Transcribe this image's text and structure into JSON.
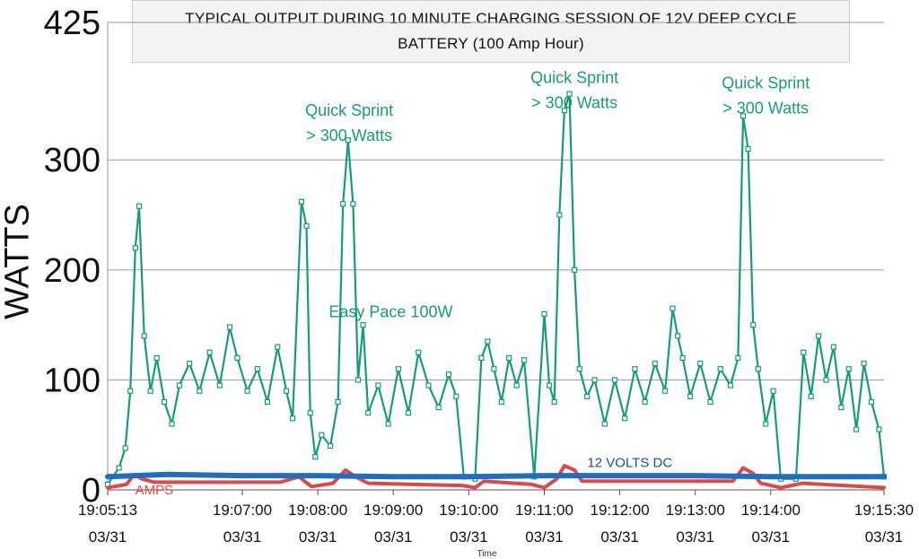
{
  "chart_data": {
    "type": "line",
    "title": "TYPICAL OUTPUT DURING 10 MINUTE CHARGING SESSION  OF 12V DEEP CYCLE\nBATTERY  (100 Amp Hour)",
    "ylabel": "WATTS",
    "xlabel": "Time",
    "ylim": [
      0,
      425
    ],
    "yticks": [
      0,
      100,
      200,
      300,
      425
    ],
    "xlim": [
      "19:05:13",
      "19:15:30"
    ],
    "xticks": [
      {
        "time": "19:05:13",
        "date": "03/31"
      },
      {
        "time": "19:07:00",
        "date": "03/31"
      },
      {
        "time": "19:08:00",
        "date": "03/31"
      },
      {
        "time": "19:09:00",
        "date": "03/31"
      },
      {
        "time": "19:10:00",
        "date": "03/31"
      },
      {
        "time": "19:11:00",
        "date": "03/31"
      },
      {
        "time": "19:12:00",
        "date": "03/31"
      },
      {
        "time": "19:13:00",
        "date": "03/31"
      },
      {
        "time": "19:14:00",
        "date": "03/31"
      },
      {
        "time": "19:15:30",
        "date": "03/31"
      }
    ],
    "grid": true,
    "series": [
      {
        "name": "",
        "color": "#1a9a7a",
        "points": [
          [
            "19:05:13",
            5
          ],
          [
            "19:05:22",
            20
          ],
          [
            "19:05:27",
            38
          ],
          [
            "19:05:31",
            90
          ],
          [
            "19:05:35",
            220
          ],
          [
            "19:05:38",
            258
          ],
          [
            "19:05:42",
            140
          ],
          [
            "19:05:47",
            90
          ],
          [
            "19:05:52",
            120
          ],
          [
            "19:05:58",
            80
          ],
          [
            "19:06:04",
            60
          ],
          [
            "19:06:10",
            95
          ],
          [
            "19:06:18",
            115
          ],
          [
            "19:06:26",
            90
          ],
          [
            "19:06:34",
            125
          ],
          [
            "19:06:42",
            95
          ],
          [
            "19:06:50",
            148
          ],
          [
            "19:06:56",
            120
          ],
          [
            "19:07:04",
            90
          ],
          [
            "19:07:12",
            110
          ],
          [
            "19:07:20",
            80
          ],
          [
            "19:07:28",
            130
          ],
          [
            "19:07:35",
            90
          ],
          [
            "19:07:40",
            65
          ],
          [
            "19:07:47",
            262
          ],
          [
            "19:07:51",
            240
          ],
          [
            "19:07:54",
            70
          ],
          [
            "19:07:58",
            30
          ],
          [
            "19:08:03",
            50
          ],
          [
            "19:08:10",
            40
          ],
          [
            "19:08:16",
            80
          ],
          [
            "19:08:20",
            260
          ],
          [
            "19:08:24",
            318
          ],
          [
            "19:08:28",
            260
          ],
          [
            "19:08:32",
            100
          ],
          [
            "19:08:36",
            150
          ],
          [
            "19:08:40",
            70
          ],
          [
            "19:08:48",
            95
          ],
          [
            "19:08:56",
            60
          ],
          [
            "19:09:04",
            110
          ],
          [
            "19:09:12",
            70
          ],
          [
            "19:09:20",
            125
          ],
          [
            "19:09:28",
            95
          ],
          [
            "19:09:36",
            75
          ],
          [
            "19:09:44",
            105
          ],
          [
            "19:09:50",
            85
          ],
          [
            "19:09:56",
            12
          ],
          [
            "19:10:05",
            10
          ],
          [
            "19:10:10",
            120
          ],
          [
            "19:10:15",
            135
          ],
          [
            "19:10:20",
            110
          ],
          [
            "19:10:26",
            80
          ],
          [
            "19:10:32",
            120
          ],
          [
            "19:10:38",
            95
          ],
          [
            "19:10:44",
            118
          ],
          [
            "19:10:52",
            12
          ],
          [
            "19:11:00",
            160
          ],
          [
            "19:11:04",
            95
          ],
          [
            "19:11:08",
            80
          ],
          [
            "19:11:12",
            250
          ],
          [
            "19:11:16",
            345
          ],
          [
            "19:11:20",
            360
          ],
          [
            "19:11:24",
            200
          ],
          [
            "19:11:28",
            110
          ],
          [
            "19:11:34",
            85
          ],
          [
            "19:11:40",
            100
          ],
          [
            "19:11:48",
            60
          ],
          [
            "19:11:56",
            100
          ],
          [
            "19:12:04",
            65
          ],
          [
            "19:12:12",
            110
          ],
          [
            "19:12:20",
            80
          ],
          [
            "19:12:28",
            115
          ],
          [
            "19:12:36",
            90
          ],
          [
            "19:12:42",
            165
          ],
          [
            "19:12:46",
            140
          ],
          [
            "19:12:50",
            120
          ],
          [
            "19:12:56",
            85
          ],
          [
            "19:13:04",
            115
          ],
          [
            "19:13:12",
            80
          ],
          [
            "19:13:20",
            110
          ],
          [
            "19:13:28",
            95
          ],
          [
            "19:13:34",
            120
          ],
          [
            "19:13:38",
            340
          ],
          [
            "19:13:42",
            310
          ],
          [
            "19:13:46",
            150
          ],
          [
            "19:13:50",
            110
          ],
          [
            "19:13:56",
            60
          ],
          [
            "19:14:02",
            90
          ],
          [
            "19:14:08",
            10
          ],
          [
            "19:14:20",
            10
          ],
          [
            "19:14:26",
            125
          ],
          [
            "19:14:32",
            85
          ],
          [
            "19:14:38",
            140
          ],
          [
            "19:14:44",
            100
          ],
          [
            "19:14:50",
            130
          ],
          [
            "19:14:56",
            75
          ],
          [
            "19:15:02",
            110
          ],
          [
            "19:15:08",
            55
          ],
          [
            "19:15:14",
            115
          ],
          [
            "19:15:20",
            80
          ],
          [
            "19:15:26",
            55
          ],
          [
            "19:15:30",
            12
          ]
        ]
      },
      {
        "name": "AMPS",
        "color": "#e04848",
        "points": [
          [
            "19:05:13",
            2
          ],
          [
            "19:05:28",
            5
          ],
          [
            "19:05:34",
            14
          ],
          [
            "19:05:40",
            10
          ],
          [
            "19:05:50",
            7
          ],
          [
            "19:07:30",
            7
          ],
          [
            "19:07:45",
            12
          ],
          [
            "19:07:55",
            3
          ],
          [
            "19:08:12",
            6
          ],
          [
            "19:08:22",
            18
          ],
          [
            "19:08:30",
            12
          ],
          [
            "19:08:40",
            6
          ],
          [
            "19:09:55",
            4
          ],
          [
            "19:10:05",
            2
          ],
          [
            "19:10:12",
            8
          ],
          [
            "19:10:50",
            5
          ],
          [
            "19:11:00",
            2
          ],
          [
            "19:11:10",
            10
          ],
          [
            "19:11:16",
            22
          ],
          [
            "19:11:24",
            18
          ],
          [
            "19:11:30",
            8
          ],
          [
            "19:13:30",
            8
          ],
          [
            "19:13:38",
            20
          ],
          [
            "19:13:46",
            15
          ],
          [
            "19:13:52",
            6
          ],
          [
            "19:14:08",
            2
          ],
          [
            "19:14:25",
            6
          ],
          [
            "19:15:30",
            2
          ]
        ]
      },
      {
        "name": "12 VOLTS DC",
        "color": "#1f6fc0",
        "points": [
          [
            "19:05:13",
            12
          ],
          [
            "19:06:00",
            14
          ],
          [
            "19:07:00",
            13
          ],
          [
            "19:08:00",
            13
          ],
          [
            "19:09:00",
            12
          ],
          [
            "19:10:00",
            12
          ],
          [
            "19:11:00",
            13
          ],
          [
            "19:12:00",
            13
          ],
          [
            "19:13:00",
            13
          ],
          [
            "19:14:00",
            12
          ],
          [
            "19:15:30",
            12
          ]
        ]
      }
    ],
    "annotations": [
      {
        "text_lines": [
          "Quick Sprint",
          "> 300 Watts"
        ],
        "at": "19:08:25",
        "y": 340
      },
      {
        "text_lines": [
          "Quick Sprint",
          "> 300 Watts"
        ],
        "at": "19:11:24",
        "y": 370
      },
      {
        "text_lines": [
          "Quick Sprint",
          "> 300 Watts"
        ],
        "at": "19:13:56",
        "y": 365
      },
      {
        "text_lines": [
          "Easy Pace 100W"
        ],
        "at": "19:08:58",
        "y": 157
      },
      {
        "text_lines": [
          "12 VOLTS DC"
        ],
        "at": "19:12:08",
        "y": 21
      },
      {
        "text_lines": [
          "AMPS"
        ],
        "at": "19:05:50",
        "y": -4
      }
    ]
  }
}
